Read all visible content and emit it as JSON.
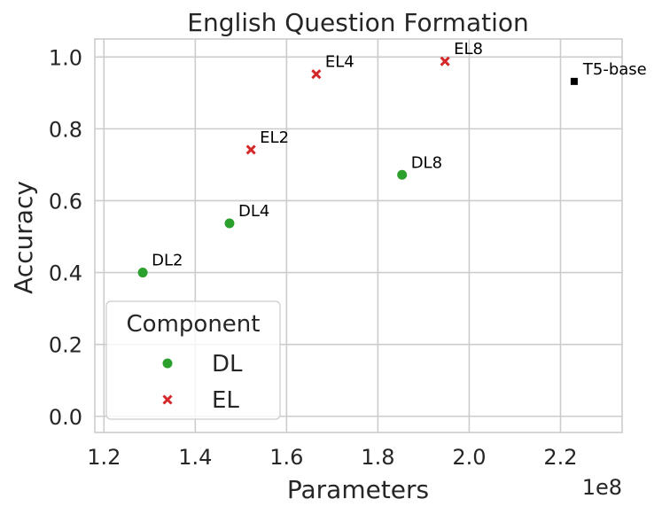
{
  "chart_data": {
    "type": "scatter",
    "title": "English Question Formation",
    "xlabel": "Parameters",
    "ylabel": "Accuracy",
    "x_offset_label": "1e8",
    "xlim": [
      1.18,
      2.335
    ],
    "ylim": [
      -0.045,
      1.05
    ],
    "xticks": [
      1.2,
      1.4,
      1.6,
      1.8,
      2.0,
      2.2
    ],
    "xtick_labels": [
      "1.2",
      "1.4",
      "1.6",
      "1.8",
      "2.0",
      "2.2"
    ],
    "yticks": [
      0.0,
      0.2,
      0.4,
      0.6,
      0.8,
      1.0
    ],
    "ytick_labels": [
      "0.0",
      "0.2",
      "0.4",
      "0.6",
      "0.8",
      "1.0"
    ],
    "grid": true,
    "legend": {
      "title": "Component",
      "placement": "lower-left",
      "entries": [
        {
          "label": "DL",
          "marker": "circle",
          "color": "#2ca02c"
        },
        {
          "label": "EL",
          "marker": "x",
          "color": "#d62728"
        }
      ]
    },
    "series": [
      {
        "name": "DL",
        "marker": "circle",
        "color": "#2ca02c",
        "points": [
          {
            "label": "DL2",
            "x": 1.285,
            "y": 0.4
          },
          {
            "label": "DL4",
            "x": 1.475,
            "y": 0.537
          },
          {
            "label": "DL8",
            "x": 1.853,
            "y": 0.672
          }
        ]
      },
      {
        "name": "EL",
        "marker": "x",
        "color": "#d62728",
        "points": [
          {
            "label": "EL2",
            "x": 1.522,
            "y": 0.742
          },
          {
            "label": "EL4",
            "x": 1.665,
            "y": 0.952
          },
          {
            "label": "EL8",
            "x": 1.947,
            "y": 0.988
          }
        ]
      },
      {
        "marker": "square",
        "color": "#000000",
        "points": [
          {
            "label": "T5-base",
            "x": 2.23,
            "y": 0.932
          }
        ]
      }
    ]
  }
}
